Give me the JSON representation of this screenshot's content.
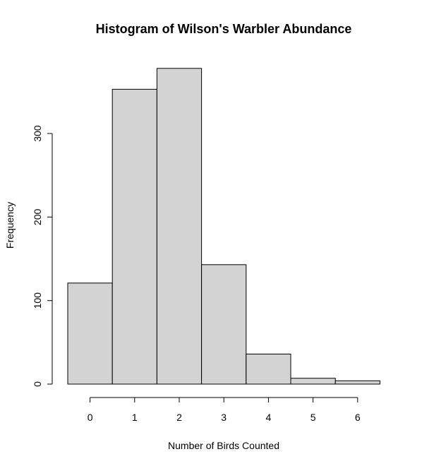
{
  "chart_data": {
    "type": "bar",
    "title": "Histogram of Wilson's Warbler Abundance",
    "xlabel": "Number of Birds Counted",
    "ylabel": "Frequency",
    "categories": [
      "0",
      "1",
      "2",
      "3",
      "4",
      "5",
      "6"
    ],
    "values": [
      121,
      353,
      378,
      143,
      36,
      7,
      4
    ],
    "ylim": [
      0,
      378
    ],
    "y_ticks": [
      0,
      100,
      200,
      300
    ],
    "grid": false,
    "colors": {
      "bar_fill": "#d3d3d3",
      "bar_stroke": "#000000"
    }
  }
}
